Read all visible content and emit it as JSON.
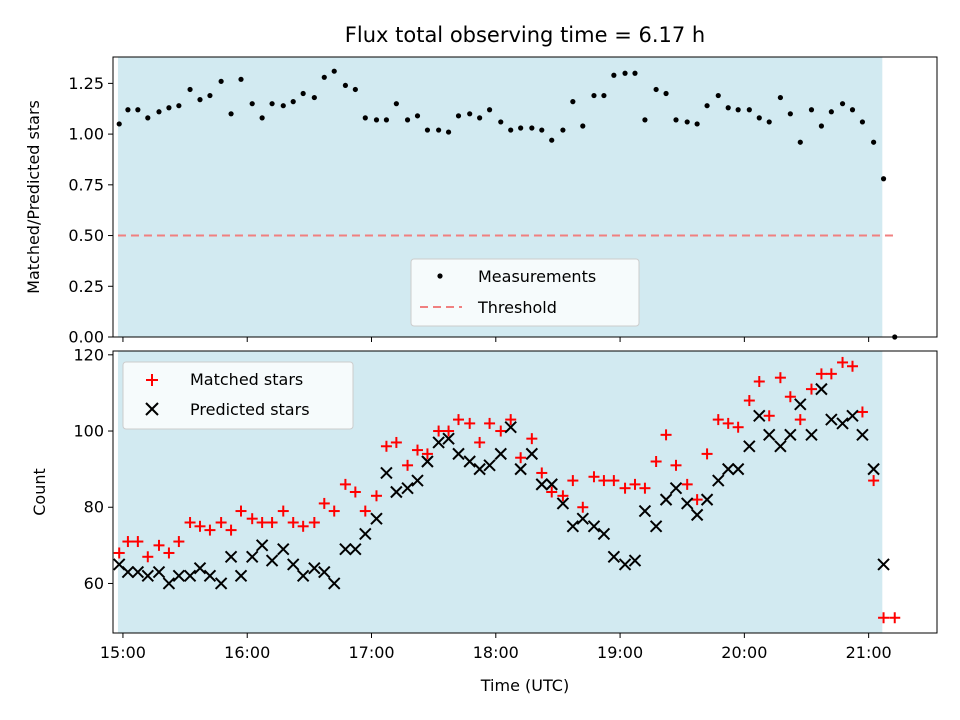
{
  "chart_data": [
    {
      "type": "scatter",
      "title": "Flux total observing time = 6.17 h",
      "xlabel": "",
      "ylabel": "Matched/Predicted stars",
      "xlim": [
        14.92,
        21.55
      ],
      "ylim": [
        0,
        1.38
      ],
      "yticks": [
        "0.00",
        "0.25",
        "0.50",
        "0.75",
        "1.00",
        "1.25"
      ],
      "shaded_span": [
        14.96,
        21.11
      ],
      "legend": {
        "placement": "lower-center",
        "entries": [
          "Measurements",
          "Threshold"
        ]
      },
      "threshold": {
        "name": "Threshold",
        "y": 0.5,
        "x": [
          14.96,
          21.21
        ],
        "color": "#f08080"
      },
      "series": [
        {
          "name": "Measurements",
          "color": "#000000",
          "x": [
            14.97,
            15.04,
            15.12,
            15.2,
            15.29,
            15.37,
            15.45,
            15.54,
            15.62,
            15.7,
            15.79,
            15.87,
            15.95,
            16.04,
            16.12,
            16.2,
            16.29,
            16.37,
            16.45,
            16.54,
            16.62,
            16.7,
            16.79,
            16.87,
            16.95,
            17.04,
            17.12,
            17.2,
            17.29,
            17.37,
            17.45,
            17.54,
            17.62,
            17.7,
            17.79,
            17.87,
            17.95,
            18.04,
            18.12,
            18.2,
            18.29,
            18.37,
            18.45,
            18.54,
            18.62,
            18.7,
            18.79,
            18.87,
            18.95,
            19.04,
            19.12,
            19.2,
            19.29,
            19.37,
            19.45,
            19.54,
            19.62,
            19.7,
            19.79,
            19.87,
            19.95,
            20.04,
            20.12,
            20.2,
            20.29,
            20.37,
            20.45,
            20.54,
            20.62,
            20.7,
            20.79,
            20.87,
            20.95,
            21.04,
            21.12,
            21.21
          ],
          "y": [
            1.05,
            1.12,
            1.12,
            1.08,
            1.11,
            1.13,
            1.14,
            1.22,
            1.17,
            1.19,
            1.26,
            1.1,
            1.27,
            1.15,
            1.08,
            1.15,
            1.14,
            1.16,
            1.2,
            1.18,
            1.28,
            1.31,
            1.24,
            1.22,
            1.08,
            1.07,
            1.07,
            1.15,
            1.07,
            1.09,
            1.02,
            1.02,
            1.01,
            1.09,
            1.1,
            1.08,
            1.12,
            1.06,
            1.02,
            1.03,
            1.03,
            1.02,
            0.97,
            1.02,
            1.16,
            1.04,
            1.19,
            1.19,
            1.29,
            1.3,
            1.3,
            1.07,
            1.22,
            1.2,
            1.07,
            1.06,
            1.05,
            1.14,
            1.19,
            1.13,
            1.12,
            1.12,
            1.08,
            1.06,
            1.18,
            1.1,
            0.96,
            1.12,
            1.04,
            1.11,
            1.15,
            1.12,
            1.06,
            0.96,
            0.78,
            0.0
          ]
        }
      ]
    },
    {
      "type": "scatter",
      "title": "",
      "xlabel": "Time (UTC)",
      "ylabel": "Count",
      "xlim": [
        14.92,
        21.55
      ],
      "ylim": [
        47,
        121
      ],
      "yticks": [
        "60",
        "80",
        "100",
        "120"
      ],
      "xticks": [
        {
          "value": 15,
          "label": "15:00"
        },
        {
          "value": 16,
          "label": "16:00"
        },
        {
          "value": 17,
          "label": "17:00"
        },
        {
          "value": 18,
          "label": "18:00"
        },
        {
          "value": 19,
          "label": "19:00"
        },
        {
          "value": 20,
          "label": "20:00"
        },
        {
          "value": 21,
          "label": "21:00"
        }
      ],
      "shaded_span": [
        14.96,
        21.11
      ],
      "legend": {
        "placement": "upper-left",
        "entries": [
          "Matched stars",
          "Predicted stars"
        ]
      },
      "series": [
        {
          "name": "Matched stars",
          "marker": "+",
          "color": "#ff0000",
          "x": [
            14.97,
            15.04,
            15.12,
            15.2,
            15.29,
            15.37,
            15.45,
            15.54,
            15.62,
            15.7,
            15.79,
            15.87,
            15.95,
            16.04,
            16.12,
            16.2,
            16.29,
            16.37,
            16.45,
            16.54,
            16.62,
            16.7,
            16.79,
            16.87,
            16.95,
            17.04,
            17.12,
            17.2,
            17.29,
            17.37,
            17.45,
            17.54,
            17.62,
            17.7,
            17.79,
            17.87,
            17.95,
            18.04,
            18.12,
            18.2,
            18.29,
            18.37,
            18.45,
            18.54,
            18.62,
            18.7,
            18.79,
            18.87,
            18.95,
            19.04,
            19.12,
            19.2,
            19.29,
            19.37,
            19.45,
            19.54,
            19.62,
            19.7,
            19.79,
            19.87,
            19.95,
            20.04,
            20.12,
            20.2,
            20.29,
            20.37,
            20.45,
            20.54,
            20.62,
            20.7,
            20.79,
            20.87,
            20.95,
            21.04,
            21.12,
            21.21
          ],
          "y": [
            68,
            71,
            71,
            67,
            70,
            68,
            71,
            76,
            75,
            74,
            76,
            74,
            79,
            77,
            76,
            76,
            79,
            76,
            75,
            76,
            81,
            79,
            86,
            84,
            79,
            83,
            96,
            97,
            91,
            95,
            94,
            100,
            100,
            103,
            102,
            97,
            102,
            100,
            103,
            93,
            98,
            89,
            84,
            83,
            87,
            80,
            88,
            87,
            87,
            85,
            86,
            85,
            92,
            99,
            91,
            86,
            82,
            94,
            103,
            102,
            101,
            108,
            113,
            104,
            114,
            109,
            103,
            111,
            115,
            115,
            118,
            117,
            105,
            87,
            51,
            51
          ]
        },
        {
          "name": "Predicted stars",
          "marker": "x",
          "color": "#000000",
          "x": [
            14.97,
            15.04,
            15.12,
            15.2,
            15.29,
            15.37,
            15.45,
            15.54,
            15.62,
            15.7,
            15.79,
            15.87,
            15.95,
            16.04,
            16.12,
            16.2,
            16.29,
            16.37,
            16.45,
            16.54,
            16.62,
            16.7,
            16.79,
            16.87,
            16.95,
            17.04,
            17.12,
            17.2,
            17.29,
            17.37,
            17.45,
            17.54,
            17.62,
            17.7,
            17.79,
            17.87,
            17.95,
            18.04,
            18.12,
            18.2,
            18.29,
            18.37,
            18.45,
            18.54,
            18.62,
            18.7,
            18.79,
            18.87,
            18.95,
            19.04,
            19.12,
            19.2,
            19.29,
            19.37,
            19.45,
            19.54,
            19.62,
            19.7,
            19.79,
            19.87,
            19.95,
            20.04,
            20.12,
            20.2,
            20.29,
            20.37,
            20.45,
            20.54,
            20.62,
            20.7,
            20.79,
            20.87,
            20.95,
            21.04,
            21.12
          ],
          "y": [
            65,
            63,
            63,
            62,
            63,
            60,
            62,
            62,
            64,
            62,
            60,
            67,
            62,
            67,
            70,
            66,
            69,
            65,
            62,
            64,
            63,
            60,
            69,
            69,
            73,
            77,
            89,
            84,
            85,
            87,
            92,
            97,
            98,
            94,
            92,
            90,
            91,
            94,
            101,
            90,
            94,
            86,
            86,
            81,
            75,
            77,
            75,
            73,
            67,
            65,
            66,
            79,
            75,
            82,
            85,
            81,
            78,
            82,
            87,
            90,
            90,
            96,
            104,
            99,
            96,
            99,
            107,
            99,
            111,
            103,
            102,
            104,
            99,
            90,
            65
          ]
        }
      ]
    }
  ],
  "colors": {
    "span_fill": "#add8e6",
    "matched": "#ff0000",
    "predicted": "#000000",
    "threshold": "#f08080"
  }
}
